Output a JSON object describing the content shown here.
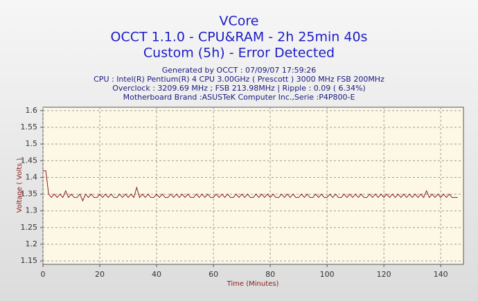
{
  "chart_data": {
    "type": "line",
    "title": "VCore",
    "title_lines": [
      "OCCT 1.1.0 - CPU&RAM - 2h 25min 40s",
      "Custom (5h) - Error Detected"
    ],
    "subtitle_lines": [
      "Generated by OCCT : 07/09/07 17:59:26",
      "CPU : Intel(R) Pentium(R) 4 CPU 3.00GHz ( Prescott ) 3000 MHz FSB 200MHz",
      "Overclock : 3209.69 MHz ; FSB 213.98MHz | Ripple : 0.09 ( 6.34%)",
      "Motherboard Brand :ASUSTeK Computer Inc.,Serie :P4P800-E"
    ],
    "x_label": "Time (Minutes)",
    "y_label": "Voltage ( Volts )",
    "color": "#8b1a1a",
    "grid": true,
    "xlim": [
      0,
      148
    ],
    "xticks": [
      0,
      20,
      40,
      60,
      80,
      100,
      120,
      140
    ],
    "ylim": [
      1.14,
      1.61
    ],
    "yticks": [
      1.15,
      1.2,
      1.25,
      1.3,
      1.35,
      1.4,
      1.45,
      1.5,
      1.55,
      1.6
    ],
    "x": [
      0,
      1,
      2,
      3,
      4,
      5,
      6,
      7,
      8,
      9,
      10,
      11,
      12,
      13,
      14,
      15,
      16,
      17,
      18,
      19,
      20,
      21,
      22,
      23,
      24,
      25,
      26,
      27,
      28,
      29,
      30,
      31,
      32,
      33,
      34,
      35,
      36,
      37,
      38,
      39,
      40,
      41,
      42,
      43,
      44,
      45,
      46,
      47,
      48,
      49,
      50,
      51,
      52,
      53,
      54,
      55,
      56,
      57,
      58,
      59,
      60,
      61,
      62,
      63,
      64,
      65,
      66,
      67,
      68,
      69,
      70,
      71,
      72,
      73,
      74,
      75,
      76,
      77,
      78,
      79,
      80,
      81,
      82,
      83,
      84,
      85,
      86,
      87,
      88,
      89,
      90,
      91,
      92,
      93,
      94,
      95,
      96,
      97,
      98,
      99,
      100,
      101,
      102,
      103,
      104,
      105,
      106,
      107,
      108,
      109,
      110,
      111,
      112,
      113,
      114,
      115,
      116,
      117,
      118,
      119,
      120,
      121,
      122,
      123,
      124,
      125,
      126,
      127,
      128,
      129,
      130,
      131,
      132,
      133,
      134,
      135,
      136,
      137,
      138,
      139,
      140,
      141,
      142,
      143,
      144,
      145,
      146
    ],
    "values": [
      1.42,
      1.42,
      1.35,
      1.34,
      1.35,
      1.34,
      1.35,
      1.34,
      1.36,
      1.34,
      1.35,
      1.34,
      1.34,
      1.35,
      1.33,
      1.35,
      1.34,
      1.35,
      1.34,
      1.34,
      1.35,
      1.34,
      1.35,
      1.34,
      1.35,
      1.34,
      1.34,
      1.35,
      1.34,
      1.35,
      1.34,
      1.35,
      1.34,
      1.37,
      1.34,
      1.35,
      1.34,
      1.35,
      1.34,
      1.34,
      1.35,
      1.34,
      1.35,
      1.34,
      1.34,
      1.35,
      1.34,
      1.35,
      1.34,
      1.35,
      1.34,
      1.35,
      1.34,
      1.34,
      1.35,
      1.34,
      1.35,
      1.34,
      1.35,
      1.34,
      1.34,
      1.35,
      1.34,
      1.35,
      1.34,
      1.35,
      1.34,
      1.34,
      1.35,
      1.34,
      1.35,
      1.34,
      1.35,
      1.34,
      1.34,
      1.35,
      1.34,
      1.35,
      1.34,
      1.35,
      1.34,
      1.35,
      1.34,
      1.34,
      1.35,
      1.34,
      1.35,
      1.34,
      1.35,
      1.34,
      1.34,
      1.35,
      1.34,
      1.35,
      1.34,
      1.34,
      1.35,
      1.34,
      1.35,
      1.34,
      1.34,
      1.35,
      1.34,
      1.35,
      1.34,
      1.34,
      1.35,
      1.34,
      1.35,
      1.34,
      1.35,
      1.34,
      1.35,
      1.34,
      1.34,
      1.35,
      1.34,
      1.35,
      1.34,
      1.35,
      1.34,
      1.35,
      1.34,
      1.35,
      1.34,
      1.35,
      1.34,
      1.35,
      1.34,
      1.35,
      1.34,
      1.35,
      1.34,
      1.35,
      1.34,
      1.36,
      1.34,
      1.35,
      1.34,
      1.35,
      1.34,
      1.35,
      1.34,
      1.35,
      1.34,
      1.34,
      1.34
    ]
  }
}
